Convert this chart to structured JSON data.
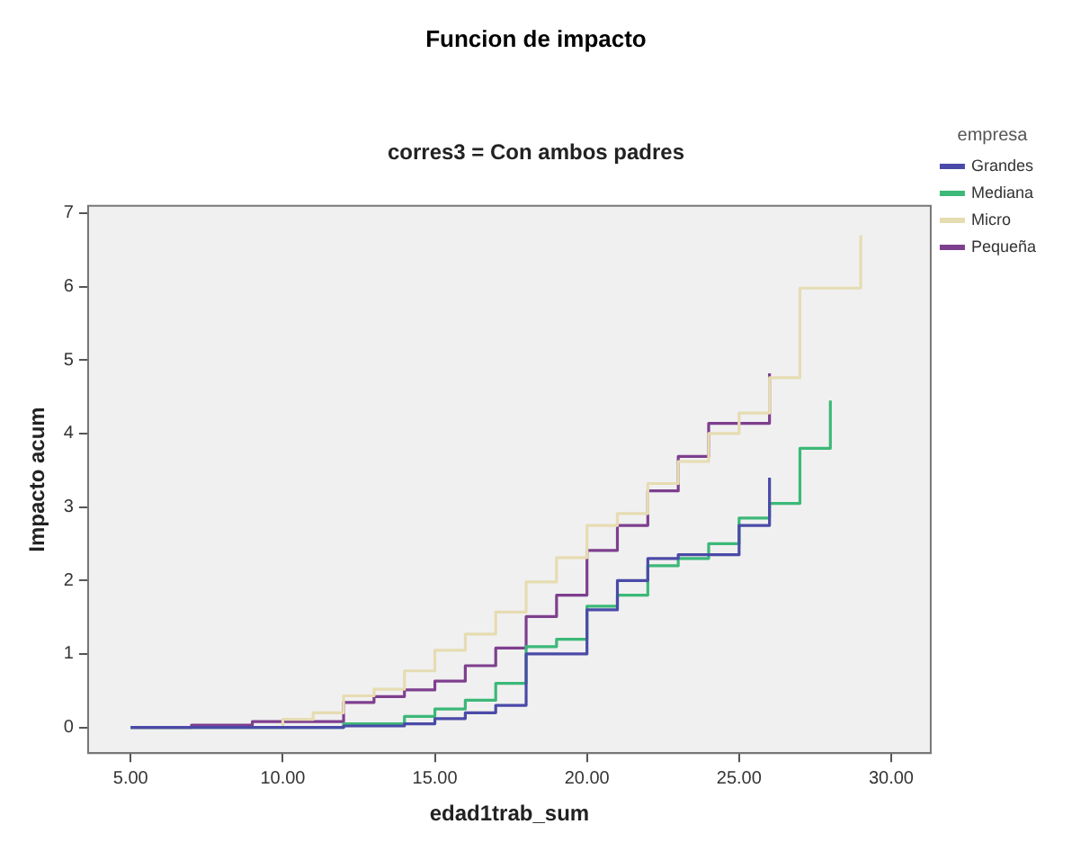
{
  "chart_data": {
    "type": "step",
    "title": "Funcion de impacto",
    "subtitle": "corres3 = Con ambos padres",
    "xlabel": "edad1trab_sum",
    "ylabel": "Impacto acum",
    "legend_title": "empresa",
    "legend": "right",
    "grid": false,
    "xlim": [
      3.6,
      31.3
    ],
    "xticks": [
      {
        "value": 5,
        "label": "5.00"
      },
      {
        "value": 10,
        "label": "10.00"
      },
      {
        "value": 15,
        "label": "15.00"
      },
      {
        "value": 20,
        "label": "20.00"
      },
      {
        "value": 25,
        "label": "25.00"
      },
      {
        "value": 30,
        "label": "30.00"
      }
    ],
    "ylim": [
      -0.35,
      7.1
    ],
    "yticks": [
      0,
      1,
      2,
      3,
      4,
      5,
      6,
      7
    ],
    "series": [
      {
        "name": "Grandes",
        "color": "#4a4aa8",
        "x": [
          5,
          12,
          14,
          15,
          16,
          17,
          18,
          19,
          20,
          21,
          22,
          23,
          24,
          25,
          26
        ],
        "values": [
          0,
          0.02,
          0.05,
          0.12,
          0.2,
          0.3,
          1.0,
          1.0,
          1.6,
          2.0,
          2.3,
          2.35,
          2.35,
          2.75,
          3.4
        ]
      },
      {
        "name": "Mediana",
        "color": "#3cb878",
        "x": [
          5,
          12,
          14,
          15,
          16,
          17,
          18,
          19,
          20,
          21,
          22,
          23,
          24,
          25,
          26,
          27,
          28
        ],
        "values": [
          0,
          0.05,
          0.15,
          0.25,
          0.37,
          0.6,
          1.1,
          1.2,
          1.65,
          1.8,
          2.2,
          2.3,
          2.5,
          2.85,
          3.05,
          3.8,
          4.45
        ]
      },
      {
        "name": "Micro",
        "color": "#e6dcb2",
        "x": [
          5,
          10,
          11,
          12,
          13,
          14,
          15,
          16,
          17,
          18,
          19,
          20,
          21,
          22,
          23,
          24,
          25,
          26,
          27,
          29
        ],
        "values": [
          0,
          0.11,
          0.2,
          0.43,
          0.52,
          0.77,
          1.05,
          1.27,
          1.57,
          1.98,
          2.31,
          2.75,
          2.91,
          3.32,
          3.62,
          4.0,
          4.28,
          4.76,
          5.98,
          6.7
        ]
      },
      {
        "name": "Pequeña",
        "color": "#7e3f8e",
        "x": [
          5,
          7,
          9,
          12,
          13,
          14,
          15,
          16,
          17,
          18,
          19,
          20,
          21,
          22,
          23,
          24,
          26
        ],
        "values": [
          0,
          0.03,
          0.08,
          0.34,
          0.42,
          0.51,
          0.63,
          0.84,
          1.08,
          1.51,
          1.8,
          2.41,
          2.75,
          3.22,
          3.69,
          4.14,
          4.82
        ]
      }
    ]
  }
}
